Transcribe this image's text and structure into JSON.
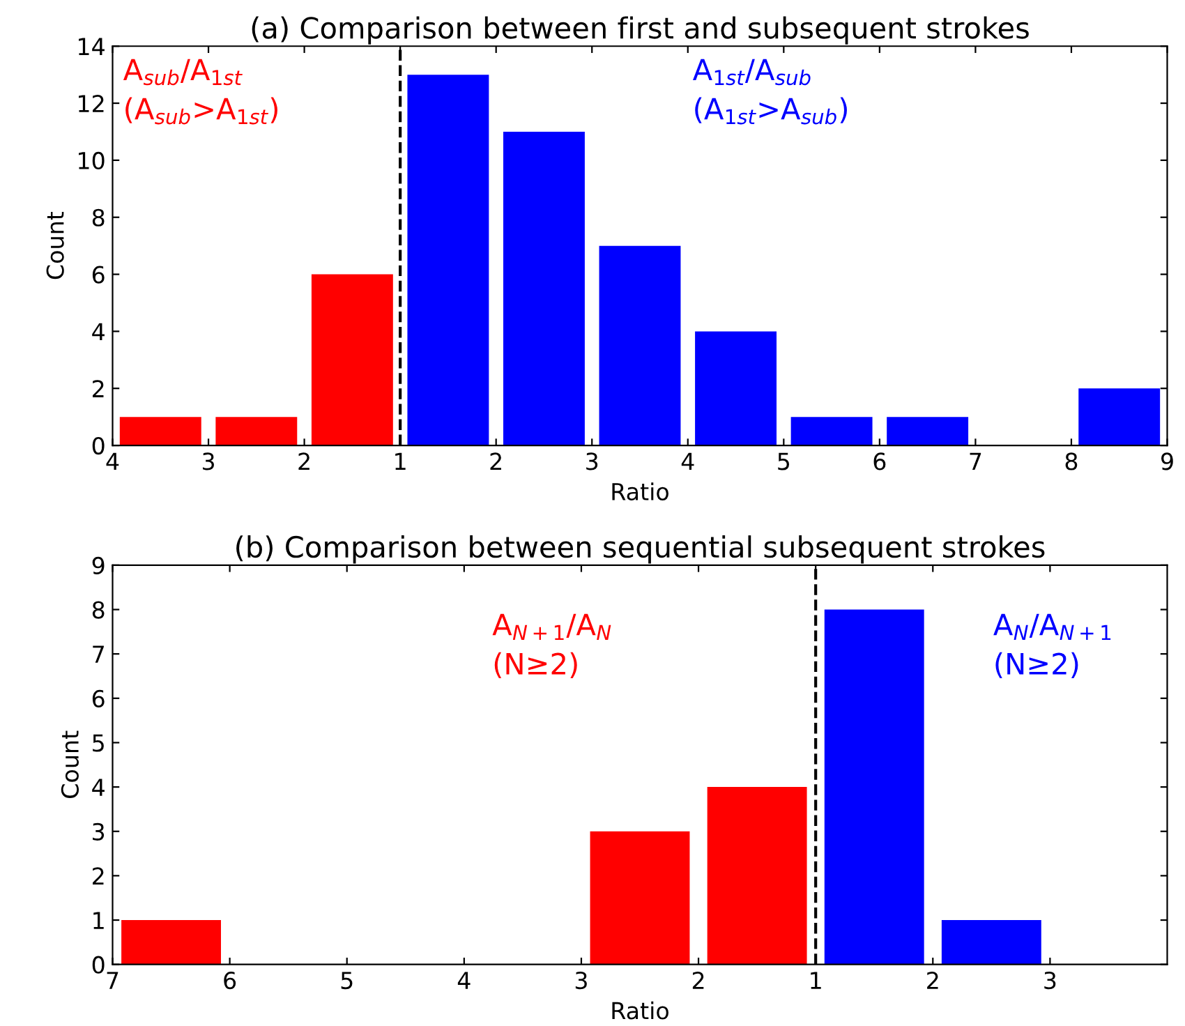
{
  "chart_data": [
    {
      "type": "bar",
      "title": "(a) Comparison between first and subsequent strokes",
      "xlabel": "Ratio",
      "ylabel": "Count",
      "ylim": [
        0,
        14
      ],
      "categories": [
        null,
        null,
        null,
        null,
        null,
        null,
        null,
        null,
        null,
        null,
        null
      ],
      "annotations": [
        "4",
        "3",
        "2",
        "1",
        "2",
        "3",
        "4",
        "5",
        "6",
        "7",
        "8",
        "9"
      ],
      "yticks": [
        0,
        2,
        4,
        6,
        8,
        10,
        12,
        14
      ],
      "grid": false,
      "legend": false,
      "series": [
        {
          "name": "A$_{sub}$/A$_{1st}$\n(A$_{sub}$>A$_{1st}$)",
          "color": "#ff0000",
          "values": [
            1,
            1,
            6,
            null,
            null,
            null,
            null,
            null,
            null,
            null,
            null
          ]
        },
        {
          "name": "A$_{1st}$/A$_{sub}$\n(A$_{1st}$>A$_{sub}$)",
          "color": "#0000ff",
          "values": [
            null,
            null,
            null,
            13,
            11,
            7,
            4,
            1,
            1,
            0,
            2
          ]
        }
      ]
    },
    {
      "type": "bar",
      "title": "(b) Comparison between sequential subsequent strokes",
      "xlabel": "Ratio",
      "ylabel": "Count",
      "ylim": [
        0,
        9
      ],
      "categories": [
        null,
        null,
        null,
        null,
        null,
        null,
        null,
        null,
        null
      ],
      "annotations": [
        "7",
        "6",
        "5",
        "4",
        "3",
        "2",
        "1",
        "2",
        "3"
      ],
      "yticks": [
        0,
        1,
        2,
        3,
        4,
        5,
        6,
        7,
        8,
        9
      ],
      "grid": false,
      "legend": false,
      "series": [
        {
          "name": "A$_{N+1}$/A$_{N}$\n(N≥2)",
          "color": "#ff0000",
          "values": [
            1,
            0,
            0,
            0,
            3,
            4,
            null,
            null,
            null
          ]
        },
        {
          "name": "A$_{N}$/A$_{N+1}$\n(N≥2)",
          "color": "#0000ff",
          "values": [
            null,
            null,
            null,
            null,
            null,
            null,
            8,
            1,
            null
          ]
        }
      ]
    }
  ]
}
